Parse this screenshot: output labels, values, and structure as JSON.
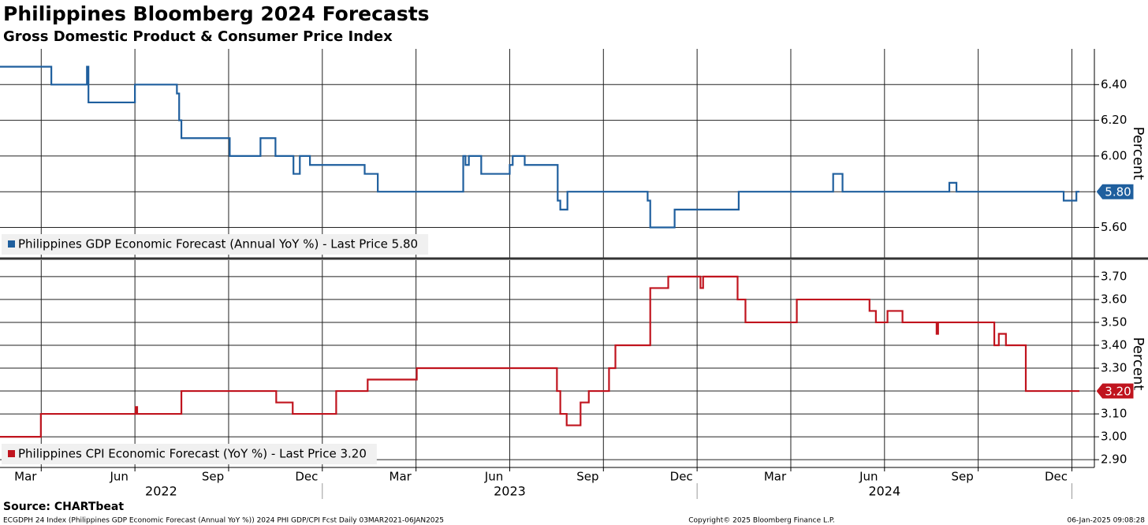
{
  "title": "Philippines Bloomberg 2024 Forecasts",
  "subtitle": "Gross Domestic Product & Consumer Price Index",
  "source": "Source: CHARTbeat",
  "footer_left": "ECGDPH 24 Index (Philippines GDP Economic Forecast (Annual YoY %)) 2024 PHI GDP/CPI Fcst  Daily 03MAR2021-06JAN2025",
  "footer_center": "Copyright© 2025 Bloomberg Finance L.P.",
  "footer_right": "06-Jan-2025 09:08:28",
  "chart_data": [
    {
      "type": "line",
      "step": "post",
      "ylabel": "Percent",
      "grid": true,
      "xlim": [
        2022.14,
        2025.06
      ],
      "ylim": [
        5.43,
        6.6
      ],
      "xgrid": [
        2022.25,
        2022.5,
        2022.75,
        2023.0,
        2023.25,
        2023.5,
        2023.75,
        2024.0,
        2024.25,
        2024.5,
        2024.75,
        2025.0
      ],
      "yticks": [
        {
          "value": 5.6,
          "label": "5.60"
        },
        {
          "value": 5.8,
          "label": "5.80"
        },
        {
          "value": 6.0,
          "label": "6.00"
        },
        {
          "value": 6.2,
          "label": "6.20"
        },
        {
          "value": 6.4,
          "label": "6.40"
        }
      ],
      "x": [
        2022.14,
        2022.277,
        2022.372,
        2022.376,
        2022.5,
        2022.612,
        2022.618,
        2022.624,
        2022.753,
        2022.835,
        2022.875,
        2022.923,
        2022.94,
        2022.967,
        2023.113,
        2023.148,
        2023.376,
        2023.382,
        2023.391,
        2023.424,
        2023.5,
        2023.508,
        2023.54,
        2023.628,
        2023.635,
        2023.654,
        2023.868,
        2023.875,
        2023.94,
        2024.111,
        2024.363,
        2024.388,
        2024.673,
        2024.692,
        2024.978,
        2025.012,
        2025.02
      ],
      "series": [
        {
          "name": "Philippines GDP Economic Forecast (Annual YoY %) - Last Price 5.80",
          "color": "#1f5f9e",
          "values": [
            6.5,
            6.4,
            6.5,
            6.3,
            6.4,
            6.35,
            6.2,
            6.1,
            6.0,
            6.1,
            6.0,
            5.9,
            6.0,
            5.95,
            5.9,
            5.8,
            6.0,
            5.95,
            6.0,
            5.9,
            5.95,
            6.0,
            5.95,
            5.75,
            5.7,
            5.8,
            5.75,
            5.6,
            5.7,
            5.8,
            5.9,
            5.8,
            5.85,
            5.8,
            5.75,
            5.8,
            5.8
          ],
          "last_value": 5.8,
          "last_value_label": "5.80"
        }
      ]
    },
    {
      "type": "line",
      "step": "post",
      "ylabel": "Percent",
      "grid": true,
      "xlim": [
        2022.14,
        2025.06
      ],
      "ylim": [
        2.866,
        3.772
      ],
      "xgrid": [
        2022.25,
        2022.5,
        2022.75,
        2023.0,
        2023.25,
        2023.5,
        2023.75,
        2024.0,
        2024.25,
        2024.5,
        2024.75,
        2025.0
      ],
      "xticks": [
        {
          "value": 2022.208,
          "label": "Mar"
        },
        {
          "value": 2022.458,
          "label": "Jun"
        },
        {
          "value": 2022.708,
          "label": "Sep"
        },
        {
          "value": 2022.958,
          "label": "Dec"
        },
        {
          "value": 2023.208,
          "label": "Mar"
        },
        {
          "value": 2023.458,
          "label": "Jun"
        },
        {
          "value": 2023.708,
          "label": "Sep"
        },
        {
          "value": 2023.958,
          "label": "Dec"
        },
        {
          "value": 2024.208,
          "label": "Mar"
        },
        {
          "value": 2024.458,
          "label": "Jun"
        },
        {
          "value": 2024.708,
          "label": "Sep"
        },
        {
          "value": 2024.958,
          "label": "Dec"
        }
      ],
      "year_ticks": [
        {
          "value": 2022.57,
          "label": "2022"
        },
        {
          "value": 2023.5,
          "label": "2023"
        },
        {
          "value": 2024.5,
          "label": "2024"
        }
      ],
      "year_separators": [
        2023.0,
        2024.0,
        2025.0
      ],
      "yticks": [
        {
          "value": 2.9,
          "label": "2.90"
        },
        {
          "value": 3.0,
          "label": "3.00"
        },
        {
          "value": 3.1,
          "label": "3.10"
        },
        {
          "value": 3.2,
          "label": "3.20"
        },
        {
          "value": 3.3,
          "label": "3.30"
        },
        {
          "value": 3.4,
          "label": "3.40"
        },
        {
          "value": 3.5,
          "label": "3.50"
        },
        {
          "value": 3.6,
          "label": "3.60"
        },
        {
          "value": 3.7,
          "label": "3.70"
        }
      ],
      "x": [
        2022.14,
        2022.249,
        2022.502,
        2022.506,
        2022.624,
        2022.877,
        2022.921,
        2023.037,
        2023.121,
        2023.252,
        2023.626,
        2023.635,
        2023.652,
        2023.689,
        2023.711,
        2023.765,
        2023.782,
        2023.875,
        2023.923,
        2024.009,
        2024.016,
        2024.108,
        2024.129,
        2024.266,
        2024.46,
        2024.477,
        2024.508,
        2024.548,
        2024.639,
        2024.643,
        2024.793,
        2024.805,
        2024.824,
        2024.877,
        2025.02
      ],
      "series": [
        {
          "name": "Philippines CPI Economic Forecast (YoY %) - Last Price 3.20",
          "color": "#c0141e",
          "values": [
            3.0,
            3.1,
            3.13,
            3.1,
            3.2,
            3.15,
            3.1,
            3.2,
            3.25,
            3.3,
            3.2,
            3.1,
            3.05,
            3.15,
            3.2,
            3.3,
            3.4,
            3.65,
            3.7,
            3.65,
            3.7,
            3.6,
            3.5,
            3.6,
            3.55,
            3.5,
            3.55,
            3.5,
            3.45,
            3.5,
            3.4,
            3.45,
            3.4,
            3.2,
            3.2
          ],
          "last_value": 3.2,
          "last_value_label": "3.20"
        }
      ]
    }
  ]
}
